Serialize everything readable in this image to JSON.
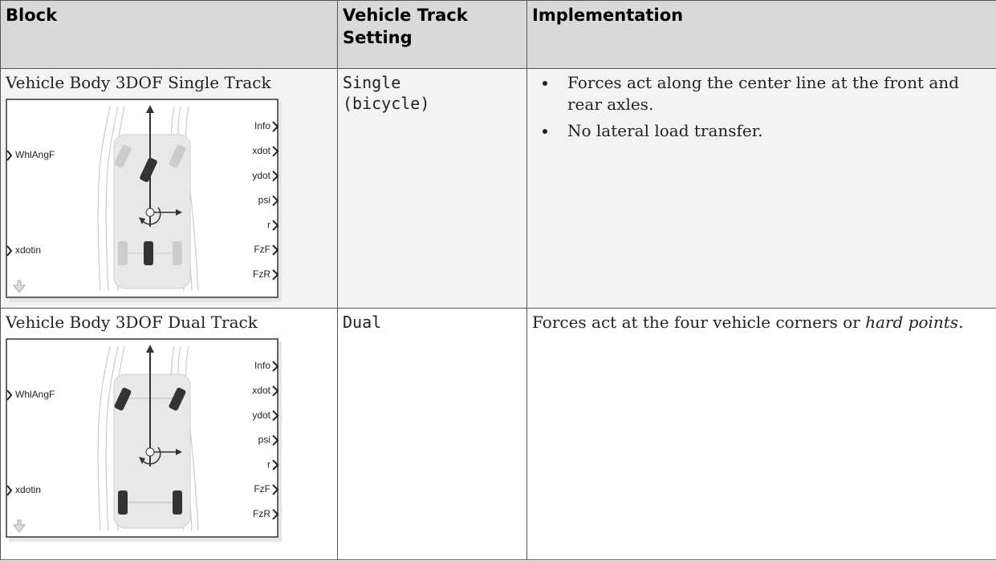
{
  "table": {
    "headers": [
      "Block",
      "Vehicle Track Setting",
      "Implementation"
    ],
    "rows": [
      {
        "block": "Vehicle Body 3DOF Single Track",
        "diagram": {
          "inputs": [
            "WhlAngF",
            "xdotin"
          ],
          "outputs": [
            "Info",
            "xdot",
            "ydot",
            "psi",
            "r",
            "FzF",
            "FzR"
          ]
        },
        "setting": "Single (bicycle)",
        "implementation": {
          "bullets": [
            "Forces act along the center line at the front and rear axles.",
            "No lateral load transfer."
          ]
        }
      },
      {
        "block": "Vehicle Body 3DOF Dual Track",
        "diagram": {
          "inputs": [
            "WhlAngF",
            "xdotin"
          ],
          "outputs": [
            "Info",
            "xdot",
            "ydot",
            "psi",
            "r",
            "FzF",
            "FzR"
          ]
        },
        "setting": "Dual",
        "implementation": {
          "text": "Forces act at the four vehicle corners or ",
          "emphasis": "hard points",
          "end": "."
        }
      }
    ]
  }
}
